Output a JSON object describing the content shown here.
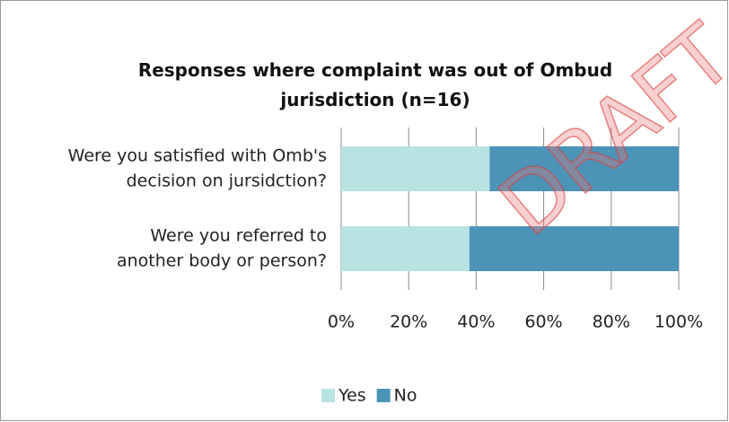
{
  "chart_data": {
    "type": "stacked_barh",
    "title": "Responses where complaint was out of Ombud jurisdiction (n=16)",
    "categories": [
      [
        "Were you satisfied with Omb's",
        "decision on jursidction?"
      ],
      [
        "Were you referred to",
        "another body or person?"
      ]
    ],
    "series": [
      {
        "name": "Yes",
        "color": "#b9e2e2",
        "values": [
          44,
          38
        ]
      },
      {
        "name": "No",
        "color": "#4b94b8",
        "values": [
          56,
          62
        ]
      }
    ],
    "xlim": [
      0,
      100
    ],
    "xticks": [
      {
        "value": 0,
        "label": "0%"
      },
      {
        "value": 20,
        "label": "20%"
      },
      {
        "value": 40,
        "label": "40%"
      },
      {
        "value": 60,
        "label": "60%"
      },
      {
        "value": 80,
        "label": "80%"
      },
      {
        "value": 100,
        "label": "100%"
      }
    ],
    "grid": true,
    "legend": "bottom",
    "watermark": "DRAFT"
  }
}
